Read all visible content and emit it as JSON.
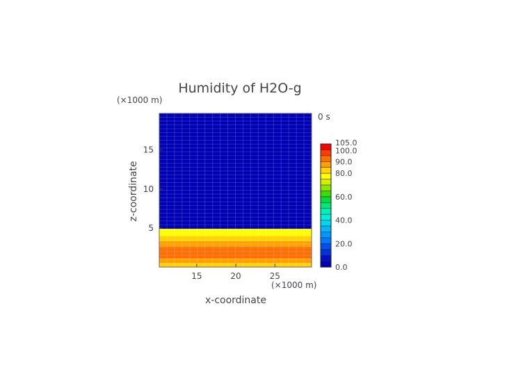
{
  "chart_data": {
    "type": "heatmap",
    "title": "Humidity of H2O-g",
    "time_label": "0 s",
    "xlabel": "x-coordinate",
    "ylabel": "z-coordinate",
    "x_unit": "(×1000 m)",
    "y_unit": "(×1000 m)",
    "xlim": [
      10.2,
      29.7
    ],
    "ylim": [
      0,
      19.7
    ],
    "x_ticks": [
      15,
      20,
      25
    ],
    "y_ticks": [
      5,
      10,
      15
    ],
    "grid": true,
    "layers": [
      {
        "z_from": 0.0,
        "z_to": 0.5,
        "value": 82
      },
      {
        "z_from": 0.5,
        "z_to": 1.1,
        "value": 86
      },
      {
        "z_from": 1.1,
        "z_to": 1.6,
        "value": 90
      },
      {
        "z_from": 1.6,
        "z_to": 2.1,
        "value": 93
      },
      {
        "z_from": 2.1,
        "z_to": 2.6,
        "value": 90
      },
      {
        "z_from": 2.6,
        "z_to": 3.3,
        "value": 86
      },
      {
        "z_from": 3.3,
        "z_to": 4.0,
        "value": 82
      },
      {
        "z_from": 4.0,
        "z_to": 4.9,
        "value": 77
      },
      {
        "z_from": 4.9,
        "z_to": 19.7,
        "value": 1
      }
    ],
    "colorbar": {
      "min": 0,
      "max": 105,
      "tick_labels": [
        "0.0",
        "20.0",
        "40.0",
        "60.0",
        "80.0",
        "90.0",
        "100.0",
        "105.0"
      ],
      "tick_values": [
        0,
        20,
        40,
        60,
        80,
        90,
        100,
        105
      ],
      "levels": [
        {
          "from": 0,
          "to": 5,
          "color": "#0000b4"
        },
        {
          "from": 5,
          "to": 10,
          "color": "#0010c8"
        },
        {
          "from": 10,
          "to": 15,
          "color": "#0030e0"
        },
        {
          "from": 15,
          "to": 20,
          "color": "#0050f0"
        },
        {
          "from": 20,
          "to": 25,
          "color": "#0078ff"
        },
        {
          "from": 25,
          "to": 30,
          "color": "#0098ff"
        },
        {
          "from": 30,
          "to": 35,
          "color": "#00b8ff"
        },
        {
          "from": 35,
          "to": 40,
          "color": "#00d8f0"
        },
        {
          "from": 40,
          "to": 45,
          "color": "#00eedc"
        },
        {
          "from": 45,
          "to": 50,
          "color": "#00f0b4"
        },
        {
          "from": 50,
          "to": 55,
          "color": "#00e878"
        },
        {
          "from": 55,
          "to": 60,
          "color": "#00dc3c"
        },
        {
          "from": 60,
          "to": 65,
          "color": "#3cdc00"
        },
        {
          "from": 65,
          "to": 70,
          "color": "#8ce600"
        },
        {
          "from": 70,
          "to": 75,
          "color": "#d2f000"
        },
        {
          "from": 75,
          "to": 80,
          "color": "#ffff00"
        },
        {
          "from": 80,
          "to": 85,
          "color": "#ffd200"
        },
        {
          "from": 85,
          "to": 90,
          "color": "#ffa000"
        },
        {
          "from": 90,
          "to": 95,
          "color": "#ff6e00"
        },
        {
          "from": 95,
          "to": 100,
          "color": "#ff3c00"
        },
        {
          "from": 100,
          "to": 105,
          "color": "#ff0000"
        }
      ]
    }
  }
}
